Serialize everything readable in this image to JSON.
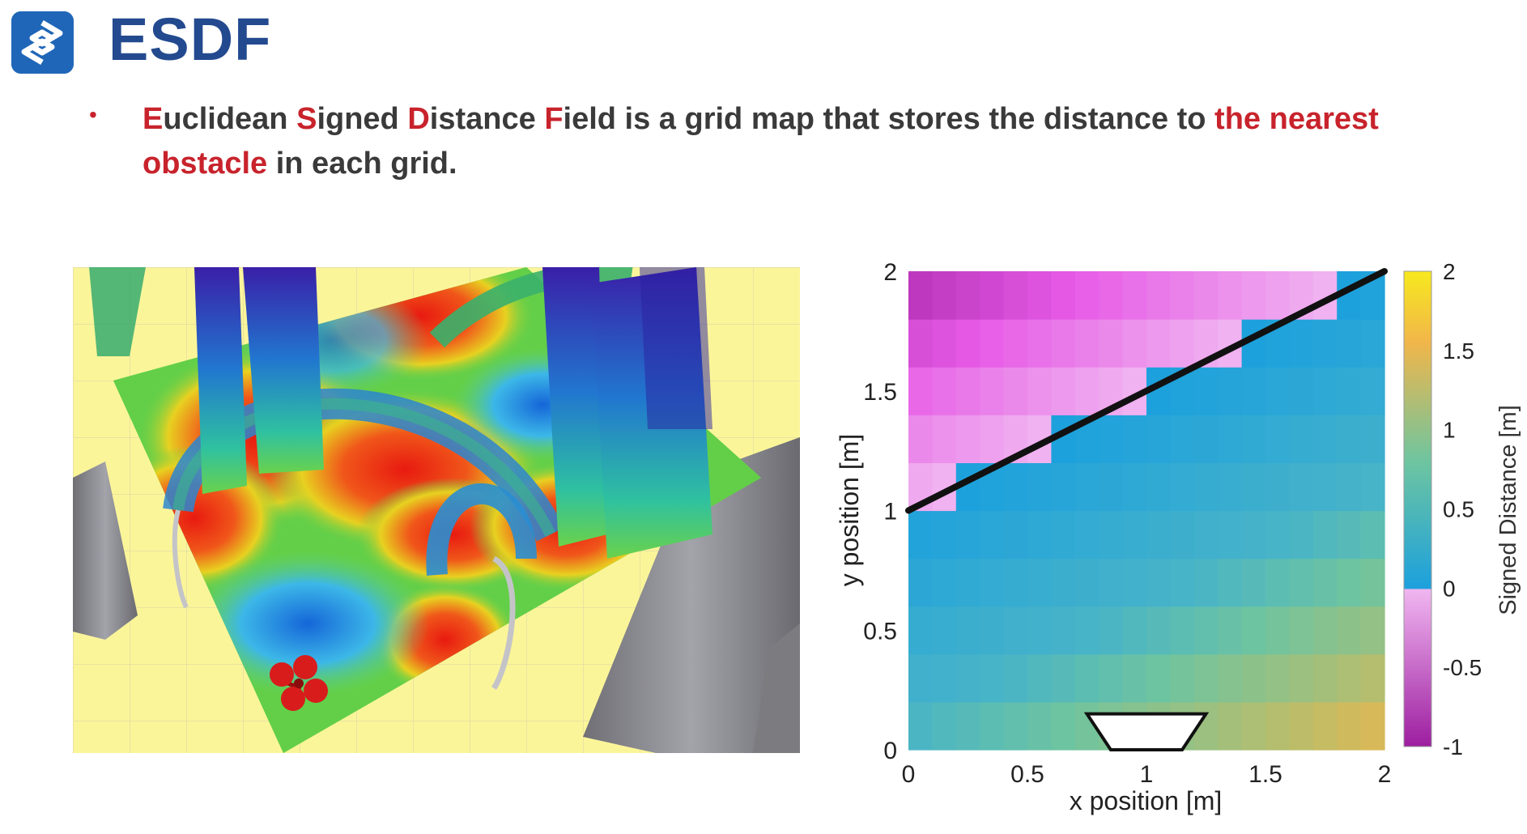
{
  "header": {
    "title": "ESDF"
  },
  "bullet": {
    "letter_e": "E",
    "word_e": "uclidean ",
    "letter_s": "S",
    "word_s": "igned ",
    "letter_d": "D",
    "word_d": "istance ",
    "letter_f": "F",
    "word_f": "ield is a grid map that stores the distance to ",
    "highlight_1": "the nearest",
    "highlight_2": "obstacle",
    "tail": " in each grid."
  },
  "colors": {
    "title": "#234a8f",
    "accent_red": "#c8232c",
    "logo": "#1f66b8"
  },
  "chart_data": {
    "type": "heatmap",
    "xlabel": "x position [m]",
    "ylabel": "y position [m]",
    "colorbar_label": "Signed Distance [m]",
    "xlim": [
      0,
      2
    ],
    "ylim": [
      0,
      2
    ],
    "x_ticks": [
      "0",
      "0.5",
      "1",
      "1.5",
      "2"
    ],
    "y_ticks": [
      "0",
      "0.5",
      "1",
      "1.5",
      "2"
    ],
    "colorbar_range": [
      -1,
      2
    ],
    "colorbar_ticks": [
      "2",
      "1.5",
      "1",
      "0.5",
      "0",
      "-0.5",
      "-1"
    ],
    "grid_cells": [
      20,
      10
    ],
    "obstacle_boundary": {
      "from": [
        0,
        1
      ],
      "to": [
        2,
        2
      ]
    },
    "trapezoid_shape": [
      [
        0.75,
        0.15
      ],
      [
        1.25,
        0.15
      ],
      [
        1.15,
        0
      ],
      [
        0.85,
        0
      ]
    ]
  }
}
